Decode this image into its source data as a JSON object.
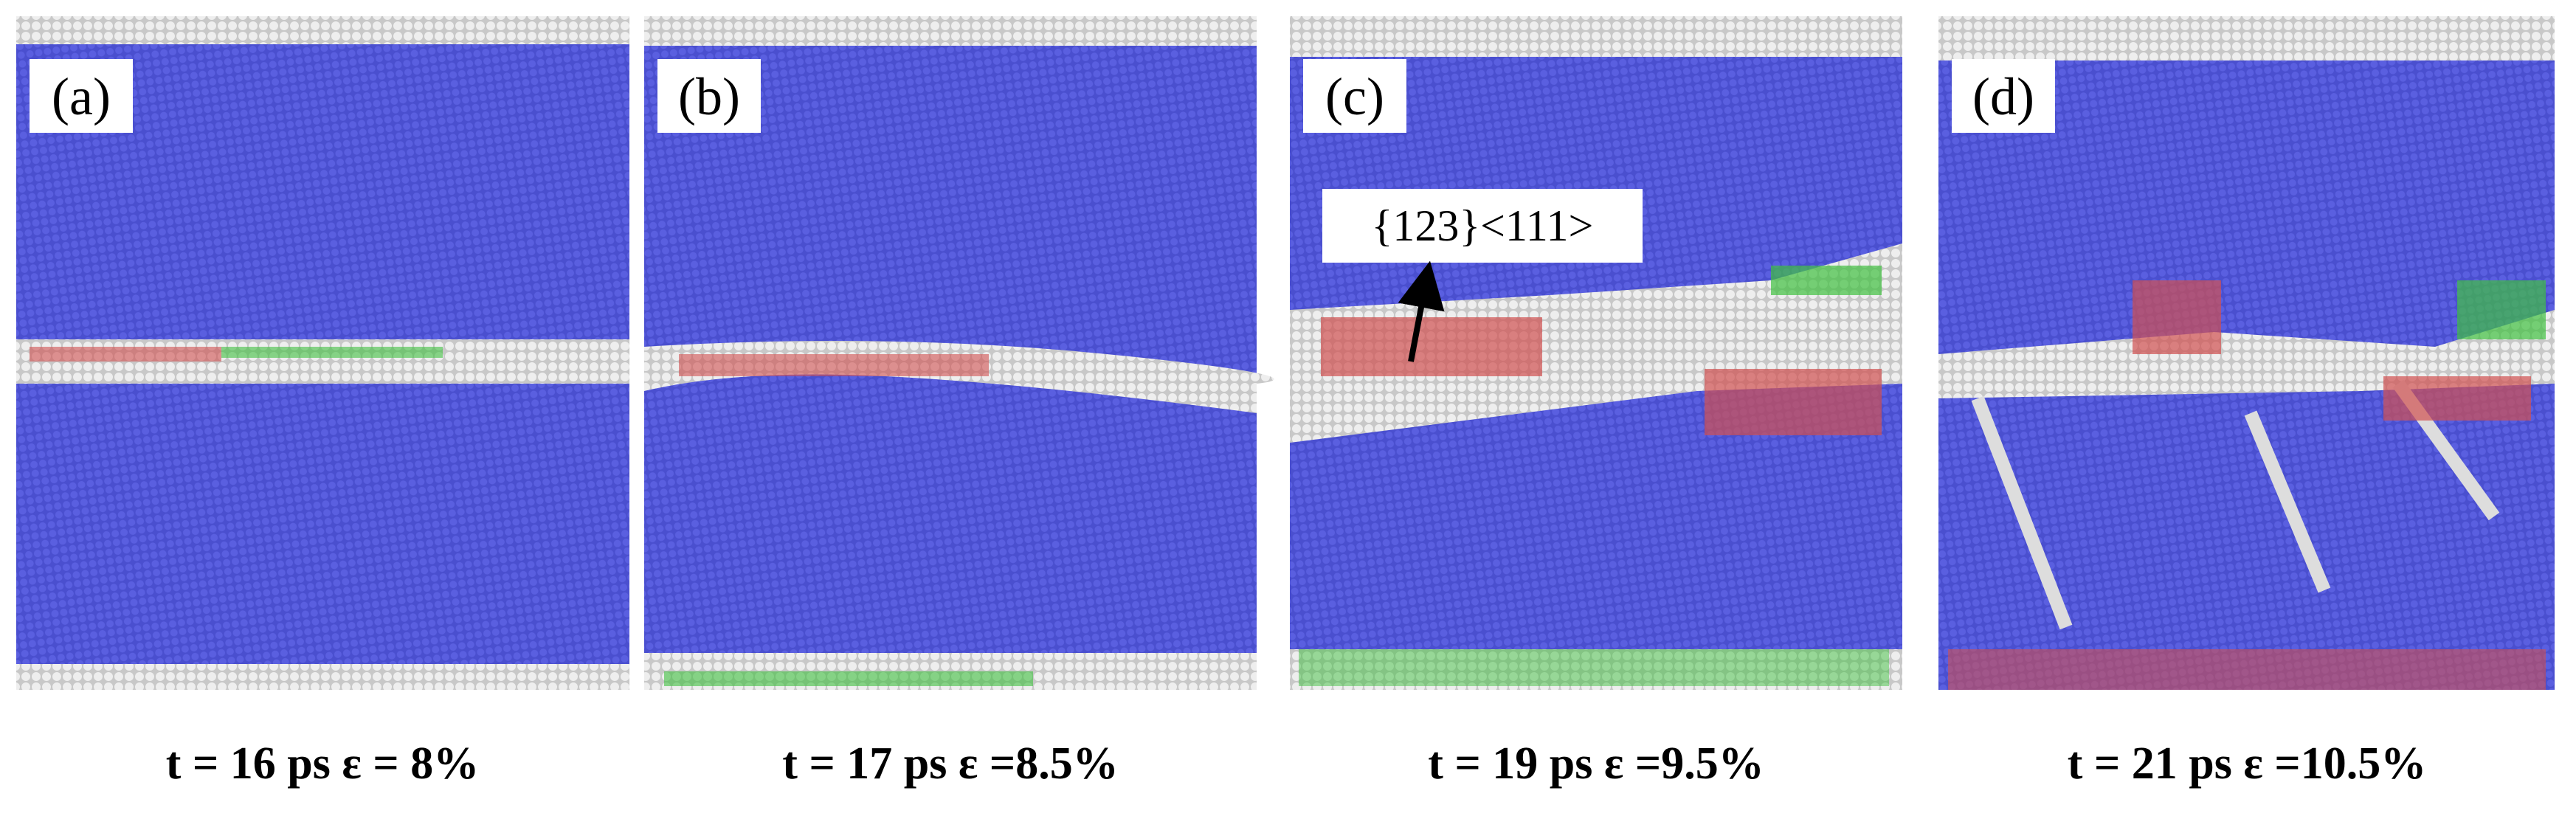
{
  "panels": [
    {
      "label": "(a)",
      "caption": "t = 16 ps ε = 8%"
    },
    {
      "label": "(b)",
      "caption": "t = 17 ps ε =8.5%"
    },
    {
      "label": "(c)",
      "caption": "t = 19 ps ε =9.5%",
      "annotation": "{123}<111>"
    },
    {
      "label": "(d)",
      "caption": "t = 21 ps ε =10.5%"
    }
  ]
}
